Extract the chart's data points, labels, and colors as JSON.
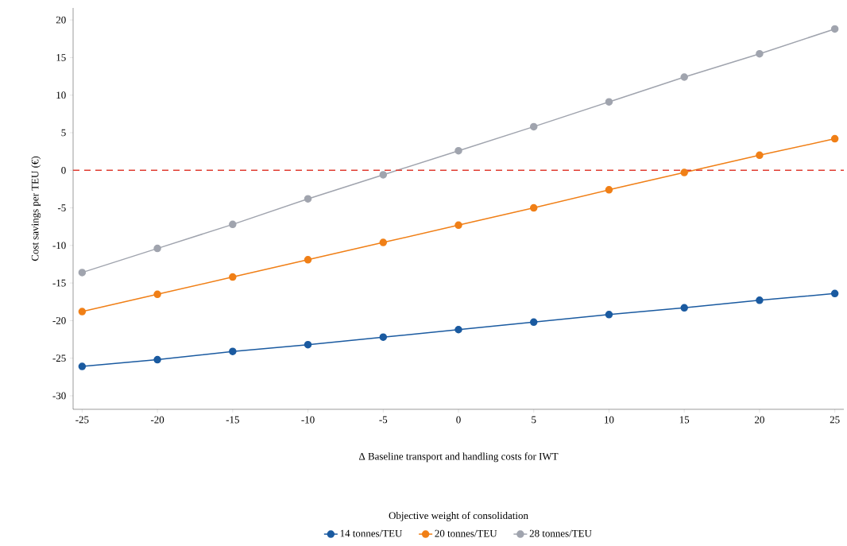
{
  "chart_data": {
    "type": "line",
    "xlabel": "Δ Baseline transport and handling costs for IWT",
    "ylabel": "Cost savings per TEU (€)",
    "legend_title": "Objective weight of consolidation",
    "x": [
      -25,
      -20,
      -15,
      -10,
      -5,
      0,
      5,
      10,
      15,
      20,
      25
    ],
    "series": [
      {
        "name": "14 tonnes/TEU",
        "color": "#1a5aa0",
        "values": [
          -26.1,
          -25.2,
          -24.1,
          -23.2,
          -22.2,
          -21.2,
          -20.2,
          -19.2,
          -18.3,
          -17.3,
          -16.4
        ]
      },
      {
        "name": "20 tonnes/TEU",
        "color": "#f07f16",
        "values": [
          -18.8,
          -16.5,
          -14.2,
          -11.9,
          -9.6,
          -7.3,
          -5.0,
          -2.6,
          -0.3,
          2.0,
          4.2
        ]
      },
      {
        "name": "28 tonnes/TEU",
        "color": "#a0a4ae",
        "values": [
          -13.6,
          -10.4,
          -7.2,
          -3.8,
          -0.6,
          2.6,
          5.8,
          9.1,
          12.4,
          15.5,
          18.8
        ]
      }
    ],
    "xlim": [
      -25.6,
      25.6
    ],
    "ylim": [
      -31.8,
      21.6
    ],
    "xticks": [
      -25,
      -20,
      -15,
      -10,
      -5,
      0,
      5,
      10,
      15,
      20,
      25
    ],
    "yticks": [
      -30,
      -25,
      -20,
      -15,
      -10,
      -5,
      0,
      5,
      10,
      15,
      20
    ],
    "ref_lines": [
      {
        "axis": "y",
        "value": 0,
        "color": "#e03c31",
        "line_style": "dashed"
      }
    ],
    "legend": "bottom",
    "marker": "circle",
    "line_style": "solid",
    "grid": false
  }
}
